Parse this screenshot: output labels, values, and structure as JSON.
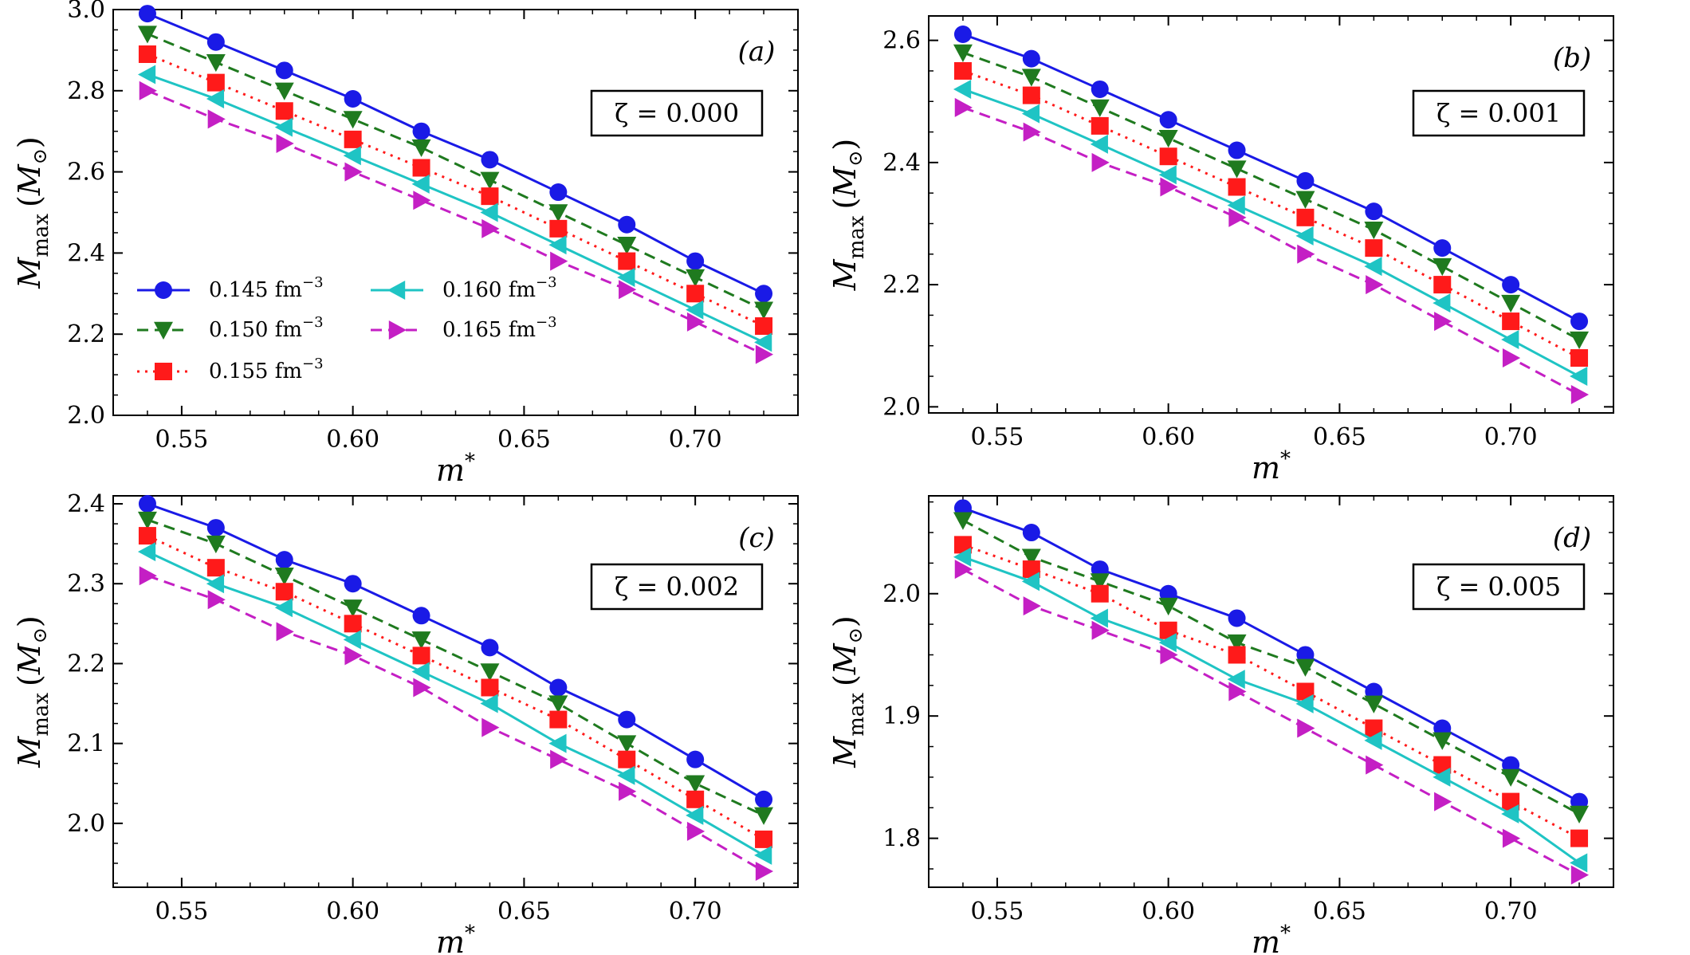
{
  "series_style": [
    {
      "color": "#1a1ae6",
      "marker": "circle",
      "dash": ""
    },
    {
      "color": "#1f7a1f",
      "marker": "triangle-down",
      "dash": "14,8"
    },
    {
      "color": "#ff1a1a",
      "marker": "square",
      "dash": "3,7"
    },
    {
      "color": "#1fc4c4",
      "marker": "triangle-left",
      "dash": ""
    },
    {
      "color": "#c41fc4",
      "marker": "triangle-right",
      "dash": "14,8"
    }
  ],
  "legend": {
    "entries": [
      "0.145 fm",
      "0.150 fm",
      "0.155 fm",
      "0.160 fm",
      "0.165 fm"
    ],
    "exponent": "−3"
  },
  "labels": {
    "y_main": "M",
    "y_sub": "max",
    "y_unit_open": "(",
    "y_unit": "M",
    "y_unit_sun": "⊙",
    "y_unit_close": ")",
    "x_main": "m",
    "x_sup": "*"
  },
  "chart_data": [
    {
      "type": "line",
      "panel_label": "(a)",
      "param_text": "ζ = 0.000",
      "xlabel": "m*",
      "ylabel": "Mmax (M⊙)",
      "x": [
        0.54,
        0.56,
        0.58,
        0.6,
        0.62,
        0.64,
        0.66,
        0.68,
        0.7,
        0.72
      ],
      "xlim": [
        0.53,
        0.73
      ],
      "ylim": [
        2.0,
        3.0
      ],
      "xticks": [
        0.55,
        0.6,
        0.65,
        0.7
      ],
      "yticks": [
        2.0,
        2.2,
        2.4,
        2.6,
        2.8,
        3.0
      ],
      "xtick_labels": [
        "0.55",
        "0.60",
        "0.65",
        "0.70"
      ],
      "ytick_labels": [
        "2.0",
        "2.2",
        "2.4",
        "2.6",
        "2.8",
        "3.0"
      ],
      "legend_position": "lower-left",
      "series": [
        {
          "name": "0.145 fm−3",
          "values": [
            2.99,
            2.92,
            2.85,
            2.78,
            2.7,
            2.63,
            2.55,
            2.47,
            2.38,
            2.3
          ]
        },
        {
          "name": "0.150 fm−3",
          "values": [
            2.94,
            2.87,
            2.8,
            2.73,
            2.66,
            2.58,
            2.5,
            2.42,
            2.34,
            2.26
          ]
        },
        {
          "name": "0.155 fm−3",
          "values": [
            2.89,
            2.82,
            2.75,
            2.68,
            2.61,
            2.54,
            2.46,
            2.38,
            2.3,
            2.22
          ]
        },
        {
          "name": "0.160 fm−3",
          "values": [
            2.84,
            2.78,
            2.71,
            2.64,
            2.57,
            2.5,
            2.42,
            2.34,
            2.26,
            2.18
          ]
        },
        {
          "name": "0.165 fm−3",
          "values": [
            2.8,
            2.73,
            2.67,
            2.6,
            2.53,
            2.46,
            2.38,
            2.31,
            2.23,
            2.15
          ]
        }
      ]
    },
    {
      "type": "line",
      "panel_label": "(b)",
      "param_text": "ζ = 0.001",
      "xlabel": "m*",
      "ylabel": "Mmax (M⊙)",
      "x": [
        0.54,
        0.56,
        0.58,
        0.6,
        0.62,
        0.64,
        0.66,
        0.68,
        0.7,
        0.72
      ],
      "xlim": [
        0.53,
        0.73
      ],
      "ylim": [
        1.99,
        2.64
      ],
      "xticks": [
        0.55,
        0.6,
        0.65,
        0.7
      ],
      "yticks": [
        2.0,
        2.2,
        2.4,
        2.6
      ],
      "xtick_labels": [
        "0.55",
        "0.60",
        "0.65",
        "0.70"
      ],
      "ytick_labels": [
        "2.0",
        "2.2",
        "2.4",
        "2.6"
      ],
      "series": [
        {
          "name": "0.145 fm−3",
          "values": [
            2.61,
            2.57,
            2.52,
            2.47,
            2.42,
            2.37,
            2.32,
            2.26,
            2.2,
            2.14
          ]
        },
        {
          "name": "0.150 fm−3",
          "values": [
            2.58,
            2.54,
            2.49,
            2.44,
            2.39,
            2.34,
            2.29,
            2.23,
            2.17,
            2.11
          ]
        },
        {
          "name": "0.155 fm−3",
          "values": [
            2.55,
            2.51,
            2.46,
            2.41,
            2.36,
            2.31,
            2.26,
            2.2,
            2.14,
            2.08
          ]
        },
        {
          "name": "0.160 fm−3",
          "values": [
            2.52,
            2.48,
            2.43,
            2.38,
            2.33,
            2.28,
            2.23,
            2.17,
            2.11,
            2.05
          ]
        },
        {
          "name": "0.165 fm−3",
          "values": [
            2.49,
            2.45,
            2.4,
            2.36,
            2.31,
            2.25,
            2.2,
            2.14,
            2.08,
            2.02
          ]
        }
      ]
    },
    {
      "type": "line",
      "panel_label": "(c)",
      "param_text": "ζ = 0.002",
      "xlabel": "m*",
      "ylabel": "Mmax (M⊙)",
      "x": [
        0.54,
        0.56,
        0.58,
        0.6,
        0.62,
        0.64,
        0.66,
        0.68,
        0.7,
        0.72
      ],
      "xlim": [
        0.53,
        0.73
      ],
      "ylim": [
        1.92,
        2.41
      ],
      "xticks": [
        0.55,
        0.6,
        0.65,
        0.7
      ],
      "yticks": [
        2.0,
        2.1,
        2.2,
        2.3,
        2.4
      ],
      "xtick_labels": [
        "0.55",
        "0.60",
        "0.65",
        "0.70"
      ],
      "ytick_labels": [
        "2.0",
        "2.1",
        "2.2",
        "2.3",
        "2.4"
      ],
      "series": [
        {
          "name": "0.145 fm−3",
          "values": [
            2.4,
            2.37,
            2.33,
            2.3,
            2.26,
            2.22,
            2.17,
            2.13,
            2.08,
            2.03
          ]
        },
        {
          "name": "0.150 fm−3",
          "values": [
            2.38,
            2.35,
            2.31,
            2.27,
            2.23,
            2.19,
            2.15,
            2.1,
            2.05,
            2.01
          ]
        },
        {
          "name": "0.155 fm−3",
          "values": [
            2.36,
            2.32,
            2.29,
            2.25,
            2.21,
            2.17,
            2.13,
            2.08,
            2.03,
            1.98
          ]
        },
        {
          "name": "0.160 fm−3",
          "values": [
            2.34,
            2.3,
            2.27,
            2.23,
            2.19,
            2.15,
            2.1,
            2.06,
            2.01,
            1.96
          ]
        },
        {
          "name": "0.165 fm−3",
          "values": [
            2.31,
            2.28,
            2.24,
            2.21,
            2.17,
            2.12,
            2.08,
            2.04,
            1.99,
            1.94
          ]
        }
      ]
    },
    {
      "type": "line",
      "panel_label": "(d)",
      "param_text": "ζ = 0.005",
      "xlabel": "m*",
      "ylabel": "Mmax (M⊙)",
      "x": [
        0.54,
        0.56,
        0.58,
        0.6,
        0.62,
        0.64,
        0.66,
        0.68,
        0.7,
        0.72
      ],
      "xlim": [
        0.53,
        0.73
      ],
      "ylim": [
        1.76,
        2.08
      ],
      "xticks": [
        0.55,
        0.6,
        0.65,
        0.7
      ],
      "yticks": [
        1.8,
        1.9,
        2.0
      ],
      "xtick_labels": [
        "0.55",
        "0.60",
        "0.65",
        "0.70"
      ],
      "ytick_labels": [
        "1.8",
        "1.9",
        "2.0"
      ],
      "series": [
        {
          "name": "0.145 fm−3",
          "values": [
            2.07,
            2.05,
            2.02,
            2.0,
            1.98,
            1.95,
            1.92,
            1.89,
            1.86,
            1.83
          ]
        },
        {
          "name": "0.150 fm−3",
          "values": [
            2.06,
            2.03,
            2.01,
            1.99,
            1.96,
            1.94,
            1.91,
            1.88,
            1.85,
            1.82
          ]
        },
        {
          "name": "0.155 fm−3",
          "values": [
            2.04,
            2.02,
            2.0,
            1.97,
            1.95,
            1.92,
            1.89,
            1.86,
            1.83,
            1.8
          ]
        },
        {
          "name": "0.160 fm−3",
          "values": [
            2.03,
            2.01,
            1.98,
            1.96,
            1.93,
            1.91,
            1.88,
            1.85,
            1.82,
            1.78
          ]
        },
        {
          "name": "0.165 fm−3",
          "values": [
            2.02,
            1.99,
            1.97,
            1.95,
            1.92,
            1.89,
            1.86,
            1.83,
            1.8,
            1.77
          ]
        }
      ]
    }
  ]
}
